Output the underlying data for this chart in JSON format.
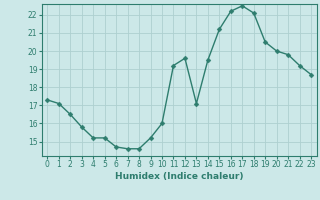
{
  "x": [
    0,
    1,
    2,
    3,
    4,
    5,
    6,
    7,
    8,
    9,
    10,
    11,
    12,
    13,
    14,
    15,
    16,
    17,
    18,
    19,
    20,
    21,
    22,
    23
  ],
  "y": [
    17.3,
    17.1,
    16.5,
    15.8,
    15.2,
    15.2,
    14.7,
    14.6,
    14.6,
    15.2,
    16.0,
    19.2,
    19.6,
    17.1,
    19.5,
    21.2,
    22.2,
    22.5,
    22.1,
    20.5,
    20.0,
    19.8,
    19.2,
    18.7
  ],
  "line_color": "#2e7d6e",
  "bg_color": "#cce8e8",
  "grid_color": "#aed0d0",
  "axis_color": "#2e7d6e",
  "xlabel": "Humidex (Indice chaleur)",
  "ylim": [
    14.2,
    22.6
  ],
  "xlim": [
    -0.5,
    23.5
  ],
  "yticks": [
    15,
    16,
    17,
    18,
    19,
    20,
    21,
    22
  ],
  "xticks": [
    0,
    1,
    2,
    3,
    4,
    5,
    6,
    7,
    8,
    9,
    10,
    11,
    12,
    13,
    14,
    15,
    16,
    17,
    18,
    19,
    20,
    21,
    22,
    23
  ],
  "font_color": "#2e7d6e",
  "marker_size": 2.5,
  "line_width": 1.0
}
